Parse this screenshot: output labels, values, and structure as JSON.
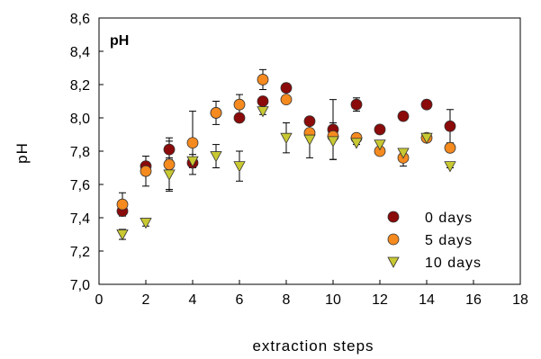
{
  "chart_data": {
    "type": "scatter",
    "title": "pH",
    "xlabel": "extraction steps",
    "ylabel": "pH",
    "xlim": [
      0,
      18
    ],
    "ylim": [
      7.0,
      8.6
    ],
    "xticks": [
      0,
      2,
      4,
      6,
      8,
      10,
      12,
      14,
      16,
      18
    ],
    "xtick_labels": [
      "0",
      "2",
      "4",
      "6",
      "8",
      "10",
      "12",
      "14",
      "16",
      "18"
    ],
    "yticks": [
      7.0,
      7.2,
      7.4,
      7.6,
      7.8,
      8.0,
      8.2,
      8.4,
      8.6
    ],
    "ytick_labels": [
      "7,0",
      "7,2",
      "7,4",
      "7,6",
      "7,8",
      "8,0",
      "8,2",
      "8,4",
      "8,6"
    ],
    "grid": false,
    "legend_position": "bottom-right",
    "series": [
      {
        "name": "0 days",
        "marker": "circle",
        "color": "#8b0a0a",
        "x": [
          1,
          2,
          3,
          4,
          5,
          6,
          7,
          8,
          9,
          10,
          11,
          12,
          13,
          14,
          15
        ],
        "y": [
          7.44,
          7.71,
          7.81,
          7.73,
          8.03,
          8.0,
          8.1,
          8.18,
          7.98,
          7.93,
          8.08,
          7.93,
          8.01,
          8.08,
          7.95
        ],
        "err": [
          0.02,
          0.02,
          0.05,
          0.03,
          0.02,
          0.02,
          0.02,
          0.01,
          0.02,
          0.18,
          0.04,
          0.01,
          0.01,
          0.02,
          0.1
        ]
      },
      {
        "name": "5 days",
        "marker": "circle",
        "color": "#f58a1f",
        "x": [
          1,
          2,
          3,
          4,
          5,
          6,
          7,
          8,
          9,
          10,
          11,
          12,
          13,
          14,
          15
        ],
        "y": [
          7.48,
          7.68,
          7.72,
          7.85,
          8.03,
          8.08,
          8.23,
          8.11,
          7.91,
          7.89,
          7.88,
          7.8,
          7.76,
          7.88,
          7.82
        ],
        "err": [
          0.07,
          0.09,
          0.16,
          0.19,
          0.07,
          0.06,
          0.06,
          0.02,
          0.02,
          0.02,
          0.02,
          0.02,
          0.05,
          0.02,
          0.02
        ]
      },
      {
        "name": "10 days",
        "marker": "triangle-down",
        "color": "#c8c832",
        "x": [
          1,
          2,
          3,
          4,
          5,
          6,
          7,
          8,
          9,
          10,
          11,
          12,
          13,
          14,
          15
        ],
        "y": [
          7.3,
          7.37,
          7.66,
          7.74,
          7.77,
          7.71,
          8.04,
          7.88,
          7.87,
          7.86,
          7.85,
          7.84,
          7.79,
          7.88,
          7.71
        ],
        "err": [
          0.03,
          0.02,
          0.09,
          0.04,
          0.07,
          0.09,
          0.02,
          0.09,
          0.11,
          0.11,
          0.01,
          0.02,
          0.02,
          0.02,
          0.01
        ]
      }
    ]
  }
}
